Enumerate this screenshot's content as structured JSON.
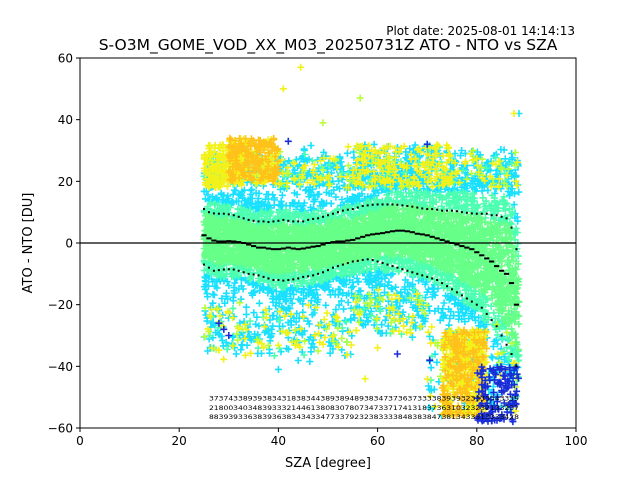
{
  "plot_date": "Plot date: 2025-08-01 14:14:13",
  "chart_data": {
    "type": "scatter",
    "title": "S-O3M_GOME_VOD_XX_M03_20250731Z ATO - NTO vs SZA",
    "xlabel": "SZA [degree]",
    "ylabel": "ATO - NTO [DU]",
    "xlim": [
      0,
      100
    ],
    "ylim": [
      -60,
      60
    ],
    "xticks": [
      "0",
      "20",
      "40",
      "60",
      "80",
      "100"
    ],
    "yticks": [
      "−60",
      "−40",
      "−20",
      "0",
      "20",
      "40",
      "60"
    ],
    "grid": false,
    "legend": "none",
    "zero_line": 0,
    "marker": "+",
    "colors": {
      "dense": "#66ff88",
      "mid": "#4dffb0",
      "cyan": "#19e0ff",
      "yellow": "#f2f21a",
      "orange": "#ffc21a",
      "blue": "#1a2ed8",
      "lime": "#b8ff3a"
    },
    "mean_sza": [
      25,
      26,
      27,
      28,
      29,
      30,
      31,
      32,
      33,
      34,
      35,
      36,
      37,
      38,
      39,
      40,
      41,
      42,
      43,
      44,
      45,
      46,
      47,
      48,
      49,
      50,
      51,
      52,
      53,
      54,
      55,
      56,
      57,
      58,
      59,
      60,
      61,
      62,
      63,
      64,
      65,
      66,
      67,
      68,
      69,
      70,
      71,
      72,
      73,
      74,
      75,
      76,
      77,
      78,
      79,
      80,
      81,
      82,
      83,
      84,
      85,
      86,
      87,
      88
    ],
    "mean": [
      2.5,
      1.5,
      0.8,
      0.5,
      0.5,
      0.6,
      0.5,
      0.3,
      0,
      -0.5,
      -1,
      -1.5,
      -1.5,
      -1.8,
      -2,
      -2,
      -1.8,
      -1.5,
      -1.8,
      -2,
      -1.8,
      -1.5,
      -1.2,
      -1,
      -0.5,
      0,
      0.3,
      0.5,
      0.5,
      0.8,
      1,
      1.5,
      2,
      2.5,
      2.8,
      3,
      3.2,
      3.5,
      3.8,
      4,
      4,
      3.8,
      3.5,
      3,
      2.8,
      2.5,
      2,
      1.5,
      1,
      0.5,
      0,
      -0.5,
      -1,
      -1.5,
      -2,
      -3,
      -4,
      -5,
      -6,
      -7.5,
      -9,
      -10,
      -13,
      -20
    ],
    "upper_sza": [
      25,
      26,
      27,
      28,
      29,
      30,
      31,
      32,
      33,
      34,
      35,
      36,
      37,
      38,
      39,
      40,
      41,
      42,
      43,
      44,
      45,
      46,
      47,
      48,
      49,
      50,
      51,
      52,
      53,
      54,
      55,
      56,
      57,
      58,
      59,
      60,
      61,
      62,
      63,
      64,
      65,
      66,
      67,
      68,
      69,
      70,
      71,
      72,
      73,
      74,
      75,
      76,
      77,
      78,
      79,
      80,
      81,
      82,
      83,
      84,
      85,
      86,
      87,
      88
    ],
    "upper": [
      11,
      10,
      9.6,
      9.5,
      9.5,
      9.3,
      9,
      8.5,
      8,
      7.5,
      7.2,
      7,
      7,
      6.8,
      7,
      7.2,
      7.5,
      7.2,
      7,
      7,
      7,
      7.5,
      7.8,
      8,
      8.5,
      9,
      9.5,
      10,
      10.5,
      10.8,
      11,
      11.5,
      12,
      12.2,
      12.4,
      12.5,
      12.5,
      12.5,
      12.5,
      12.4,
      12.2,
      12,
      11.8,
      11.5,
      11.2,
      11,
      11,
      10.8,
      10.5,
      10.5,
      10.5,
      10.3,
      10,
      9.8,
      9.6,
      9.5,
      9.5,
      9.5,
      9,
      9,
      8.5,
      8,
      5,
      -2
    ],
    "lower_sza": [
      25,
      26,
      27,
      28,
      29,
      30,
      31,
      32,
      33,
      34,
      35,
      36,
      37,
      38,
      39,
      40,
      41,
      42,
      43,
      44,
      45,
      46,
      47,
      48,
      49,
      50,
      51,
      52,
      53,
      54,
      55,
      56,
      57,
      58,
      59,
      60,
      61,
      62,
      63,
      64,
      65,
      66,
      67,
      68,
      69,
      70,
      71,
      72,
      73,
      74,
      75,
      76,
      77,
      78,
      79,
      80,
      81,
      82,
      83,
      84,
      85,
      86,
      87,
      88
    ],
    "lower": [
      -7,
      -8,
      -9,
      -8.8,
      -8.6,
      -8.5,
      -8.6,
      -9,
      -9.5,
      -10,
      -10.2,
      -10.5,
      -11,
      -11.5,
      -12,
      -12,
      -12.2,
      -12,
      -11.8,
      -11.5,
      -11,
      -10.8,
      -10.5,
      -10,
      -9.5,
      -8.8,
      -8,
      -7.5,
      -7,
      -6.5,
      -6,
      -5.8,
      -5.5,
      -5.3,
      -5.5,
      -6,
      -6.5,
      -7,
      -7.5,
      -8,
      -8.5,
      -9,
      -9.5,
      -10,
      -10.5,
      -11,
      -11.5,
      -12,
      -13,
      -14,
      -15,
      -16,
      -17,
      -18,
      -19,
      -20,
      -21,
      -23,
      -25,
      -27,
      -30,
      -33,
      -36,
      -40
    ],
    "annotation_rows": [
      "3737433893938343183834438938948938347373637333383939323333343339",
      "2180034034839333214461380830780734733717413183736310323232133237",
      "8839393363839363834343347733792323833338483838473813433313333428"
    ]
  }
}
